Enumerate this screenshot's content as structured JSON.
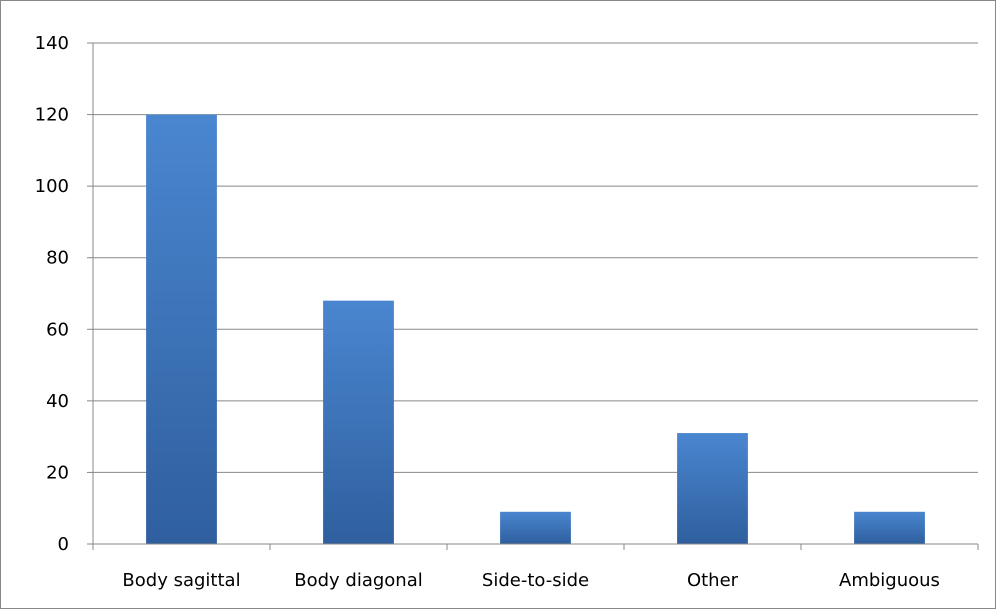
{
  "chart_data": {
    "type": "bar",
    "title": "",
    "xlabel": "",
    "ylabel": "",
    "categories": [
      "Body sagittal",
      "Body diagonal",
      "Side-to-side",
      "Other",
      "Ambiguous"
    ],
    "values": [
      120,
      68,
      9,
      31,
      9
    ],
    "ylim": [
      0,
      140
    ],
    "yticks": [
      "0",
      "20",
      "40",
      "60",
      "80",
      "100",
      "120",
      "140"
    ],
    "grid": true,
    "legend": "none",
    "bar_color_top": "#4a86d0",
    "bar_color_bottom": "#2f5f9e",
    "gridline_color": "#888888"
  }
}
